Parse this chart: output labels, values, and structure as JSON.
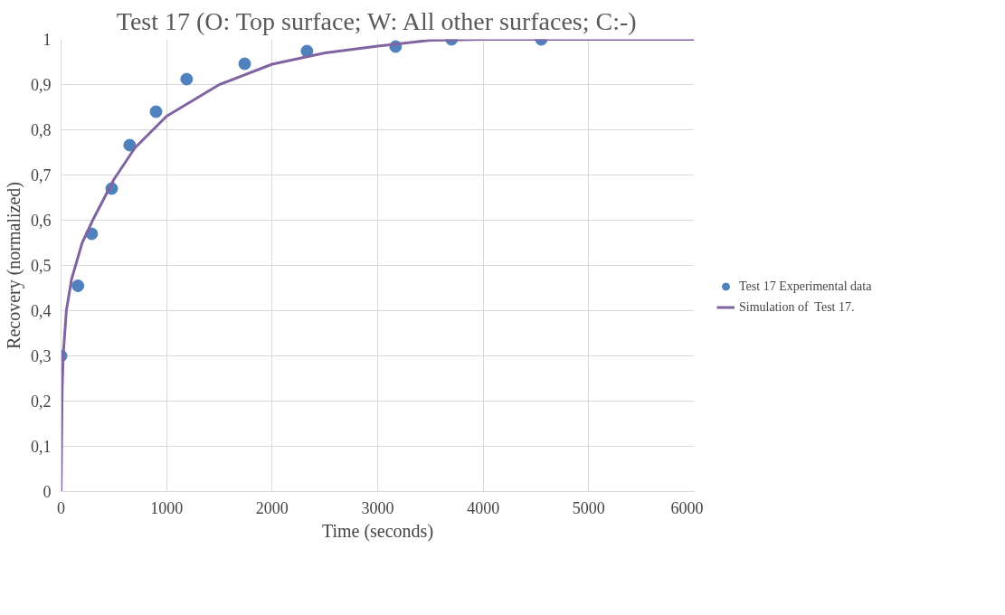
{
  "chart_data": {
    "type": "scatter",
    "title": "Test 17 (O: Top surface; W: All other surfaces; C:-)",
    "xlabel": "Time (seconds)",
    "ylabel": "Recovery (normalized)",
    "xlim": [
      0,
      6000
    ],
    "xticks": [
      0,
      1000,
      2000,
      3000,
      4000,
      5000,
      6000
    ],
    "ylim": [
      0,
      1
    ],
    "yticks": [
      0,
      {
        "value": 0.1,
        "label": "0,1"
      },
      {
        "value": 0.2,
        "label": "0,2"
      },
      {
        "value": 0.3,
        "label": "0,3"
      },
      {
        "value": 0.4,
        "label": "0,4"
      },
      {
        "value": 0.5,
        "label": "0,5"
      },
      {
        "value": 0.6,
        "label": "0,6"
      },
      {
        "value": 0.7,
        "label": "0,7"
      },
      {
        "value": 0.8,
        "label": "0,8"
      },
      {
        "value": 0.9,
        "label": "0,9"
      },
      1
    ],
    "grid": true,
    "legend": "right",
    "series": [
      {
        "name": "Test 17 Experimental data",
        "marker": "circle",
        "color": "#4f81bd",
        "x": [
          0,
          160,
          290,
          480,
          650,
          900,
          1190,
          1740,
          2330,
          3170,
          3700,
          4550
        ],
        "values": [
          0.3,
          0.455,
          0.57,
          0.67,
          0.766,
          0.84,
          0.912,
          0.946,
          0.974,
          0.984,
          1.0,
          1.0
        ]
      },
      {
        "name": "Simulation of  Test 17.",
        "type": "line",
        "color": "#8064a2",
        "x": [
          0,
          10,
          20,
          50,
          100,
          200,
          300,
          500,
          700,
          1000,
          1500,
          2000,
          2500,
          3000,
          3500,
          4000,
          6000
        ],
        "values": [
          0,
          0.22,
          0.3,
          0.4,
          0.47,
          0.55,
          0.6,
          0.69,
          0.76,
          0.83,
          0.9,
          0.945,
          0.97,
          0.985,
          0.998,
          1,
          1
        ]
      }
    ]
  }
}
